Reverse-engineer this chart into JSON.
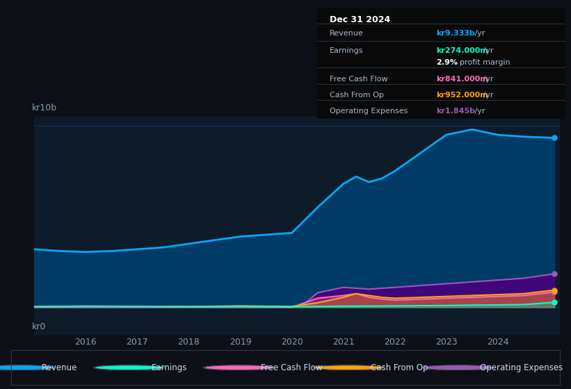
{
  "background_color": "#0d1117",
  "chart_bg_color": "#0d1b2a",
  "ylim": [
    -1.5,
    10.5
  ],
  "xlim": [
    2015.0,
    2025.2
  ],
  "ylabel_top": "kr10b",
  "ylabel_bottom": "kr0",
  "x_ticks": [
    2016,
    2017,
    2018,
    2019,
    2020,
    2021,
    2022,
    2023,
    2024
  ],
  "grid_color": "#1e3050",
  "info_box": {
    "title": "Dec 31 2024",
    "rows": [
      {
        "label": "Revenue",
        "value": "kr9.333b /yr",
        "value_color": "#00aaff"
      },
      {
        "label": "Earnings",
        "value": "kr274.000m /yr",
        "value_color": "#00ffcc"
      },
      {
        "label": "",
        "value": "2.9% profit margin",
        "value_color": "#ffffff"
      },
      {
        "label": "Free Cash Flow",
        "value": "kr841.000m /yr",
        "value_color": "#ff69b4"
      },
      {
        "label": "Cash From Op",
        "value": "kr952.000m /yr",
        "value_color": "#ffa500"
      },
      {
        "label": "Operating Expenses",
        "value": "kr1.845b /yr",
        "value_color": "#9b59b6"
      }
    ]
  },
  "series": {
    "revenue": {
      "color": "#00aaff",
      "label": "Revenue",
      "x": [
        2015.0,
        2015.5,
        2016.0,
        2016.5,
        2017.0,
        2017.5,
        2018.0,
        2018.5,
        2019.0,
        2019.5,
        2020.0,
        2020.5,
        2021.0,
        2021.25,
        2021.5,
        2021.75,
        2022.0,
        2022.5,
        2023.0,
        2023.5,
        2024.0,
        2024.5,
        2025.1
      ],
      "y": [
        3.2,
        3.1,
        3.05,
        3.1,
        3.2,
        3.3,
        3.5,
        3.7,
        3.9,
        4.0,
        4.1,
        5.5,
        6.8,
        7.2,
        6.9,
        7.1,
        7.5,
        8.5,
        9.5,
        9.8,
        9.5,
        9.4,
        9.333
      ]
    },
    "earnings": {
      "color": "#00ffcc",
      "label": "Earnings",
      "x": [
        2015.0,
        2016.0,
        2017.0,
        2018.0,
        2019.0,
        2019.5,
        2020.0,
        2020.5,
        2021.0,
        2021.5,
        2022.0,
        2022.5,
        2023.0,
        2023.5,
        2024.0,
        2024.5,
        2025.1
      ],
      "y": [
        0.05,
        0.06,
        0.05,
        0.04,
        0.05,
        0.04,
        0.03,
        0.05,
        0.06,
        0.07,
        0.08,
        0.09,
        0.1,
        0.12,
        0.13,
        0.15,
        0.274
      ]
    },
    "free_cash_flow": {
      "color": "#ff69b4",
      "label": "Free Cash Flow",
      "x": [
        2015.0,
        2016.0,
        2017.0,
        2018.0,
        2019.0,
        2019.5,
        2020.0,
        2020.3,
        2020.5,
        2021.0,
        2021.25,
        2021.5,
        2021.75,
        2022.0,
        2022.5,
        2023.0,
        2023.5,
        2024.0,
        2024.5,
        2025.1
      ],
      "y": [
        0.02,
        0.03,
        0.03,
        0.02,
        0.03,
        0.02,
        0.0,
        0.3,
        0.5,
        0.65,
        0.75,
        0.55,
        0.45,
        0.4,
        0.45,
        0.5,
        0.55,
        0.6,
        0.65,
        0.841
      ]
    },
    "cash_from_op": {
      "color": "#ffa500",
      "label": "Cash From Op",
      "x": [
        2015.0,
        2016.0,
        2017.0,
        2018.0,
        2019.0,
        2019.5,
        2020.0,
        2020.5,
        2021.0,
        2021.25,
        2021.5,
        2021.75,
        2022.0,
        2022.5,
        2023.0,
        2023.5,
        2024.0,
        2024.5,
        2025.1
      ],
      "y": [
        0.03,
        0.06,
        0.05,
        0.04,
        0.08,
        0.06,
        0.05,
        0.25,
        0.55,
        0.75,
        0.65,
        0.55,
        0.5,
        0.55,
        0.6,
        0.65,
        0.7,
        0.75,
        0.952
      ]
    },
    "operating_expenses": {
      "color": "#9b59b6",
      "label": "Operating Expenses",
      "x": [
        2015.0,
        2016.0,
        2017.0,
        2018.0,
        2019.0,
        2019.5,
        2020.0,
        2020.25,
        2020.5,
        2021.0,
        2021.5,
        2022.0,
        2022.5,
        2023.0,
        2023.5,
        2024.0,
        2024.5,
        2025.1
      ],
      "y": [
        0.0,
        0.0,
        0.0,
        0.0,
        0.0,
        0.0,
        0.0,
        0.2,
        0.8,
        1.1,
        1.0,
        1.1,
        1.2,
        1.3,
        1.4,
        1.5,
        1.6,
        1.845
      ]
    }
  },
  "legend_items": [
    {
      "label": "Revenue",
      "color": "#00aaff"
    },
    {
      "label": "Earnings",
      "color": "#00ffcc"
    },
    {
      "label": "Free Cash Flow",
      "color": "#ff69b4"
    },
    {
      "label": "Cash From Op",
      "color": "#ffa500"
    },
    {
      "label": "Operating Expenses",
      "color": "#9b59b6"
    }
  ]
}
